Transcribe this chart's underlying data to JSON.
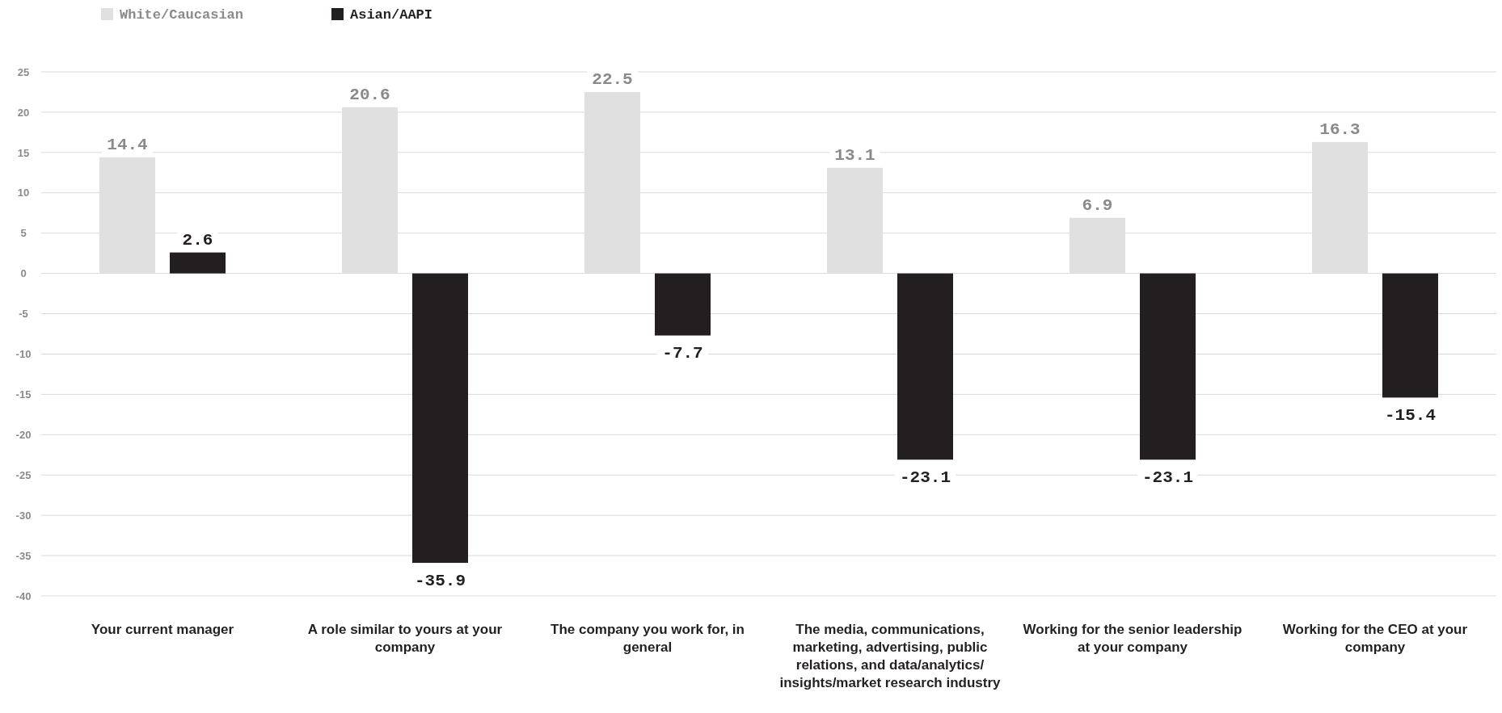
{
  "chart_data": {
    "type": "bar",
    "categories": [
      "Your current manager",
      "A role similar to yours at your company",
      "The company you work for, in general",
      "The media, communications, marketing, advertising, public relations, and data/analytics/ insights/market research industry",
      "Working for the senior leadership at your company",
      "Working for the CEO at your company"
    ],
    "series": [
      {
        "name": "White/Caucasian",
        "color": "#e0e0e1",
        "values": [
          14.4,
          20.6,
          22.5,
          13.1,
          6.9,
          16.3
        ]
      },
      {
        "name": "Asian/AAPI",
        "color": "#231f20",
        "values": [
          2.6,
          -35.9,
          -7.7,
          -23.1,
          -23.1,
          -15.4
        ]
      }
    ],
    "ylim": [
      -40,
      25
    ],
    "yticks": [
      -40,
      -35,
      -30,
      -25,
      -20,
      -15,
      -10,
      -5,
      0,
      5,
      10,
      15,
      20,
      25
    ],
    "grid": "y",
    "legend": "top left",
    "data_labels": true
  }
}
